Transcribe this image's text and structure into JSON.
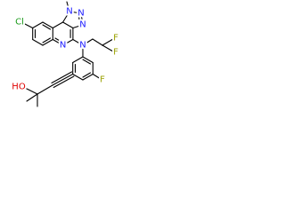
{
  "atoms": [
    "Cl",
    "N",
    "N",
    "N",
    "N",
    "N",
    "HO",
    "F",
    "F",
    "F"
  ]
}
